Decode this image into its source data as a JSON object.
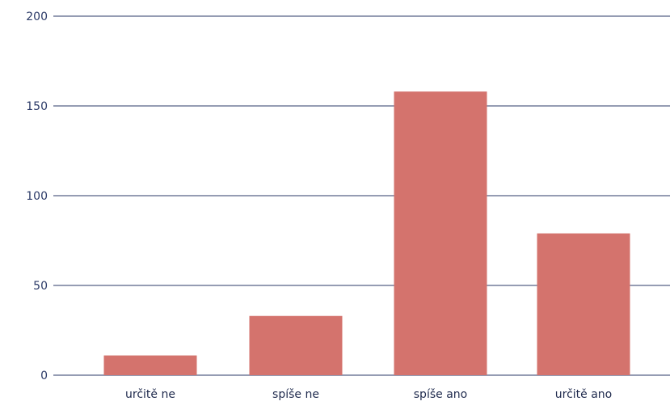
{
  "chart_data": {
    "type": "bar",
    "categories": [
      "určitě ne",
      "spíše ne",
      "spíše ano",
      "určitě ano"
    ],
    "values": [
      11,
      33,
      158,
      79
    ],
    "title": "",
    "xlabel": "",
    "ylabel": "",
    "ylim": [
      0,
      200
    ],
    "yticks": [
      "0",
      "50",
      "100",
      "150",
      "200"
    ],
    "grid": true,
    "legend": "none",
    "bar_color": "#d4736d",
    "grid_color": "#2b3a67"
  }
}
